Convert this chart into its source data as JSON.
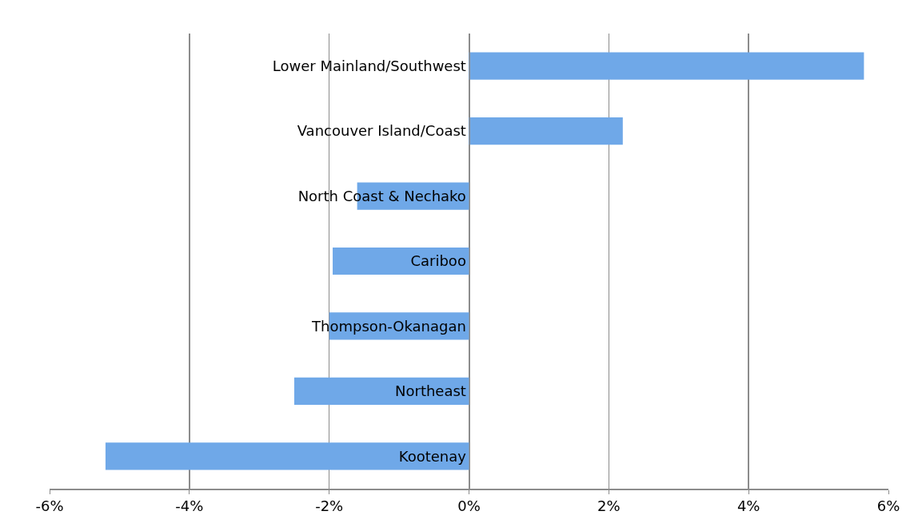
{
  "chart_data": {
    "type": "bar",
    "orientation": "horizontal",
    "categories": [
      "Lower Mainland/Southwest",
      "Vancouver Island/Coast",
      "North Coast & Nechako",
      "Cariboo",
      "Thompson-Okanagan",
      "Northeast",
      "Kootenay"
    ],
    "values": [
      5.65,
      2.2,
      -1.6,
      -1.95,
      -2.0,
      -2.5,
      -5.2
    ],
    "color": "#6fa8e8",
    "xlim": [
      -6,
      6
    ],
    "xticks": [
      {
        "value": -6,
        "label": "-6%"
      },
      {
        "value": -4,
        "label": "-4%"
      },
      {
        "value": -2,
        "label": "-2%"
      },
      {
        "value": 0,
        "label": "0%"
      },
      {
        "value": 2,
        "label": "2%"
      },
      {
        "value": 4,
        "label": "4%"
      },
      {
        "value": 6,
        "label": "6%"
      }
    ],
    "grid": "x"
  }
}
